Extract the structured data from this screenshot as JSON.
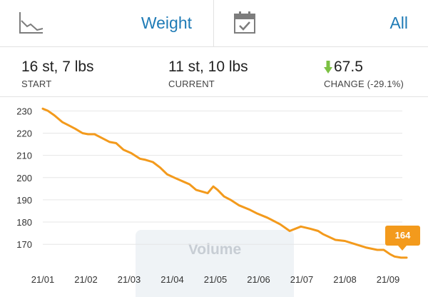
{
  "header": {
    "metric_label": "Weight",
    "metric_icon": "trend-chart-icon",
    "range_label": "All",
    "range_icon": "calendar-check-icon"
  },
  "stats": {
    "start": {
      "value": "16 st, 7 lbs",
      "caption": "START"
    },
    "current": {
      "value": "11 st, 10 lbs",
      "caption": "CURRENT"
    },
    "change": {
      "value": "67.5",
      "caption": "CHANGE (-29.1%)",
      "direction_icon": "down-arrow-icon",
      "color": "#7cc143"
    }
  },
  "watermark": {
    "text": "Volume"
  },
  "chart_data": {
    "type": "line",
    "ylim": [
      163,
      233
    ],
    "yticks": [
      170,
      180,
      190,
      200,
      210,
      220,
      230
    ],
    "xticks": [
      "21/01",
      "21/02",
      "21/03",
      "21/04",
      "21/05",
      "21/06",
      "21/07",
      "21/08",
      "21/09"
    ],
    "xlim": [
      0,
      8.43
    ],
    "line_color": "#f39a1c",
    "grid": true,
    "last_point_label": "164",
    "series": [
      {
        "x": [
          0,
          0.12,
          0.27,
          0.45,
          0.6,
          0.75,
          0.92,
          1.05,
          1.2,
          1.35,
          1.55,
          1.7,
          1.87,
          2.05,
          2.25,
          2.38,
          2.55,
          2.72,
          2.88,
          3.1,
          3.4,
          3.55,
          3.82,
          3.95,
          4.05,
          4.2,
          4.35,
          4.55,
          4.8,
          4.95,
          5.2,
          5.5,
          5.72,
          5.98,
          6.2,
          6.38,
          6.5,
          6.78,
          7.0,
          7.25,
          7.5,
          7.75,
          7.9,
          8.05,
          8.15,
          8.3,
          8.43
        ],
        "y": [
          231,
          230,
          228,
          225,
          223.5,
          222,
          220,
          219.5,
          219.5,
          218,
          216,
          215.5,
          212.5,
          211,
          208.5,
          208,
          207,
          204.5,
          201.5,
          199.5,
          197,
          194.5,
          193,
          196,
          194.5,
          191.5,
          190,
          187.5,
          185.5,
          184,
          182,
          179,
          176,
          178,
          177,
          176,
          174.5,
          172,
          171.5,
          170,
          168.5,
          167.5,
          167.5,
          165.5,
          164.5,
          164,
          164
        ]
      }
    ]
  }
}
